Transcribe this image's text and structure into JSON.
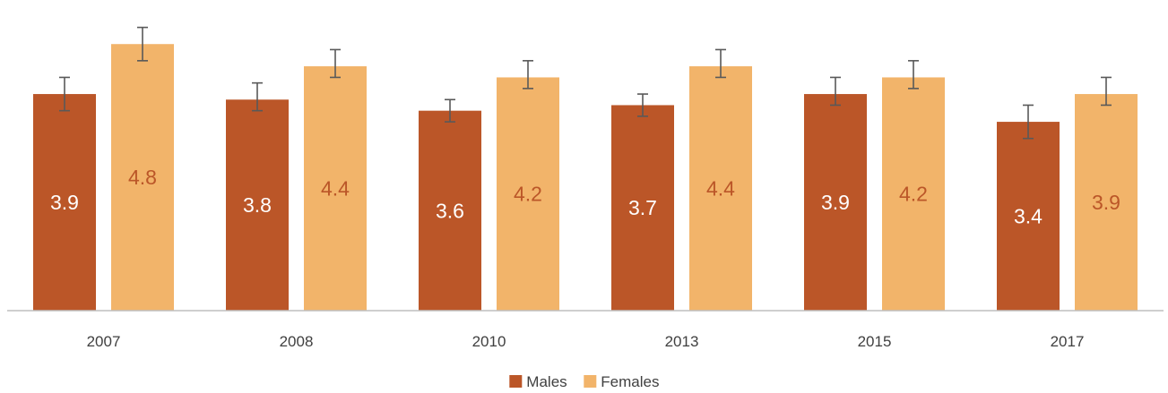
{
  "chart_data": {
    "type": "bar",
    "title": "",
    "xlabel": "",
    "ylabel": "",
    "categories": [
      "2007",
      "2008",
      "2010",
      "2013",
      "2015",
      "2017"
    ],
    "series": [
      {
        "name": "Males",
        "color": "#bb5628",
        "label_color": "#ffffff",
        "values": [
          3.9,
          3.8,
          3.6,
          3.7,
          3.9,
          3.4
        ],
        "error_low": [
          3.6,
          3.6,
          3.4,
          3.5,
          3.7,
          3.1
        ],
        "error_high": [
          4.2,
          4.1,
          3.8,
          3.9,
          4.2,
          3.7
        ]
      },
      {
        "name": "Females",
        "color": "#f2b46a",
        "label_color": "#bb5628",
        "values": [
          4.8,
          4.4,
          4.2,
          4.4,
          4.2,
          3.9
        ],
        "error_low": [
          4.5,
          4.2,
          4.0,
          4.2,
          4.0,
          3.7
        ],
        "error_high": [
          5.1,
          4.7,
          4.5,
          4.7,
          4.5,
          4.2
        ]
      }
    ],
    "ylim": [
      0,
      5.4
    ],
    "grid": false,
    "legend_position": "bottom-center"
  }
}
